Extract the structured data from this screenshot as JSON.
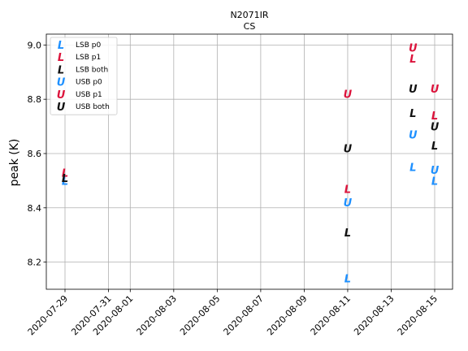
{
  "chart_data": {
    "type": "scatter",
    "title": "N2071IR",
    "subtitle": "CS",
    "ylabel": "peak (K)",
    "xlabel": "",
    "grid": true,
    "legend_position": "upper-left",
    "xlim": [
      "2020-07-28",
      "2020-08-15"
    ],
    "ylim": [
      8.1,
      9.04
    ],
    "x_ticks": [
      "2020-07-29",
      "2020-07-31",
      "2020-08-01",
      "2020-08-03",
      "2020-08-05",
      "2020-08-07",
      "2020-08-09",
      "2020-08-11",
      "2020-08-13",
      "2020-08-15"
    ],
    "y_ticks": [
      "8.2",
      "8.4",
      "8.6",
      "8.8",
      "9.0"
    ],
    "series": [
      {
        "name": "LSB p0",
        "marker": "L",
        "color": "#1e90ff",
        "points": [
          {
            "x": "2020-07-29",
            "y": 8.5
          },
          {
            "x": "2020-08-11",
            "y": 8.14
          },
          {
            "x": "2020-08-14",
            "y": 8.55
          },
          {
            "x": "2020-08-15",
            "y": 8.5
          }
        ]
      },
      {
        "name": "LSB p1",
        "marker": "L",
        "color": "#dc143c",
        "points": [
          {
            "x": "2020-07-29",
            "y": 8.53
          },
          {
            "x": "2020-08-11",
            "y": 8.47
          },
          {
            "x": "2020-08-14",
            "y": 8.95
          },
          {
            "x": "2020-08-15",
            "y": 8.74
          }
        ]
      },
      {
        "name": "LSB both",
        "marker": "L",
        "color": "#111111",
        "points": [
          {
            "x": "2020-07-29",
            "y": 8.51
          },
          {
            "x": "2020-08-11",
            "y": 8.31
          },
          {
            "x": "2020-08-14",
            "y": 8.75
          },
          {
            "x": "2020-08-15",
            "y": 8.63
          }
        ]
      },
      {
        "name": "USB p0",
        "marker": "U",
        "color": "#1e90ff",
        "points": [
          {
            "x": "2020-08-11",
            "y": 8.42
          },
          {
            "x": "2020-08-14",
            "y": 8.67
          },
          {
            "x": "2020-08-15",
            "y": 8.54
          }
        ]
      },
      {
        "name": "USB p1",
        "marker": "U",
        "color": "#dc143c",
        "points": [
          {
            "x": "2020-08-11",
            "y": 8.82
          },
          {
            "x": "2020-08-14",
            "y": 8.99
          },
          {
            "x": "2020-08-15",
            "y": 8.84
          }
        ]
      },
      {
        "name": "USB both",
        "marker": "U",
        "color": "#111111",
        "points": [
          {
            "x": "2020-08-11",
            "y": 8.62
          },
          {
            "x": "2020-08-14",
            "y": 8.84
          },
          {
            "x": "2020-08-15",
            "y": 8.7
          }
        ]
      }
    ]
  }
}
